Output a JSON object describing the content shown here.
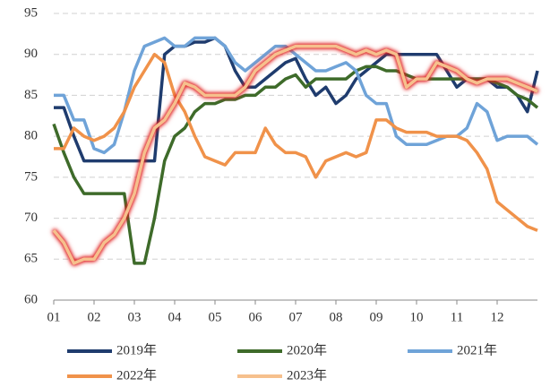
{
  "chart_data": {
    "type": "line",
    "x": [
      1,
      1.25,
      1.5,
      1.75,
      2,
      2.25,
      2.5,
      2.75,
      3,
      3.25,
      3.5,
      3.75,
      4,
      4.25,
      4.5,
      4.75,
      5,
      5.25,
      5.5,
      5.75,
      6,
      6.25,
      6.5,
      6.75,
      7,
      7.25,
      7.5,
      7.75,
      8,
      8.25,
      8.5,
      8.75,
      9,
      9.25,
      9.5,
      9.75,
      10,
      10.25,
      10.5,
      10.75,
      11,
      11.25,
      11.5,
      11.75,
      12,
      12.25,
      12.5,
      12.75,
      13
    ],
    "series": [
      {
        "name": "2019年",
        "color": "#1f3c6e",
        "values": [
          83.5,
          83.5,
          80,
          77,
          77,
          77,
          77,
          77,
          77,
          77,
          77,
          90,
          91,
          91,
          91.5,
          91.5,
          92,
          91,
          88,
          86,
          86,
          87,
          88,
          89,
          89.5,
          87,
          85,
          86,
          84,
          85,
          87,
          88,
          89,
          90,
          90,
          90,
          90,
          90,
          90,
          88,
          86,
          87,
          87,
          87,
          86,
          86,
          85,
          83,
          88
        ]
      },
      {
        "name": "2020年",
        "color": "#3e6b2a",
        "values": [
          81.5,
          78,
          75,
          73,
          73,
          73,
          73,
          73,
          64.5,
          64.5,
          70,
          77,
          80,
          81,
          83,
          84,
          84,
          84.5,
          84.5,
          85,
          85,
          86,
          86,
          87,
          87.5,
          86,
          87,
          87,
          87,
          87,
          88,
          88.5,
          88.5,
          88,
          88,
          87.5,
          87,
          87,
          87,
          87,
          87,
          87,
          87,
          87,
          86.5,
          86,
          85,
          84.5,
          83.5
        ]
      },
      {
        "name": "2021年",
        "color": "#6fa3d8",
        "values": [
          85,
          85,
          82,
          82,
          78.5,
          78,
          79,
          83,
          88,
          91,
          91.5,
          92,
          91,
          91,
          92,
          92,
          92,
          91,
          89,
          88,
          89,
          90,
          91,
          91,
          90,
          89,
          88,
          88,
          88.5,
          89,
          88,
          85,
          84,
          84,
          80,
          79,
          79,
          79,
          79.5,
          80,
          80,
          81,
          84,
          83,
          79.5,
          80,
          80,
          80,
          79
        ]
      },
      {
        "name": "2022年",
        "color": "#f0924a",
        "values": [
          78.5,
          78.5,
          81,
          80,
          79.5,
          80,
          81,
          83,
          86,
          88,
          90,
          89,
          85,
          83,
          80,
          77.5,
          77,
          76.5,
          78,
          78,
          78,
          81,
          79,
          78,
          78,
          77.5,
          75,
          77,
          77.5,
          78,
          77.5,
          78,
          82,
          82,
          81,
          80.5,
          80.5,
          80.5,
          80,
          80,
          80,
          79.5,
          78,
          76,
          72,
          71,
          70,
          69,
          68.5
        ]
      },
      {
        "name": "2023年",
        "color": "#f6c08d",
        "values": [
          68.5,
          67,
          64.5,
          65,
          65,
          67,
          68,
          70,
          73,
          78,
          81,
          82,
          84,
          86.5,
          86,
          85,
          85,
          85,
          85,
          86,
          88,
          89,
          90,
          90.5,
          91,
          91,
          91,
          91,
          91,
          90.5,
          90,
          90.5,
          90,
          90.5,
          90,
          86,
          87,
          87,
          89,
          88.5,
          88,
          87,
          86.5,
          87,
          87,
          87,
          86.5,
          86,
          85.5
        ]
      }
    ],
    "xlim": [
      1,
      13
    ],
    "xticks": [
      {
        "value": 1,
        "label": "01"
      },
      {
        "value": 2,
        "label": "02"
      },
      {
        "value": 3,
        "label": "03"
      },
      {
        "value": 4,
        "label": "04"
      },
      {
        "value": 5,
        "label": "05"
      },
      {
        "value": 6,
        "label": "06"
      },
      {
        "value": 7,
        "label": "07"
      },
      {
        "value": 8,
        "label": "08"
      },
      {
        "value": 9,
        "label": "09"
      },
      {
        "value": 10,
        "label": "10"
      },
      {
        "value": 11,
        "label": "11"
      },
      {
        "value": 12,
        "label": "12"
      }
    ],
    "ylim": [
      60,
      95
    ],
    "yticks": [
      60,
      65,
      70,
      75,
      80,
      85,
      90,
      95
    ],
    "grid": true
  }
}
